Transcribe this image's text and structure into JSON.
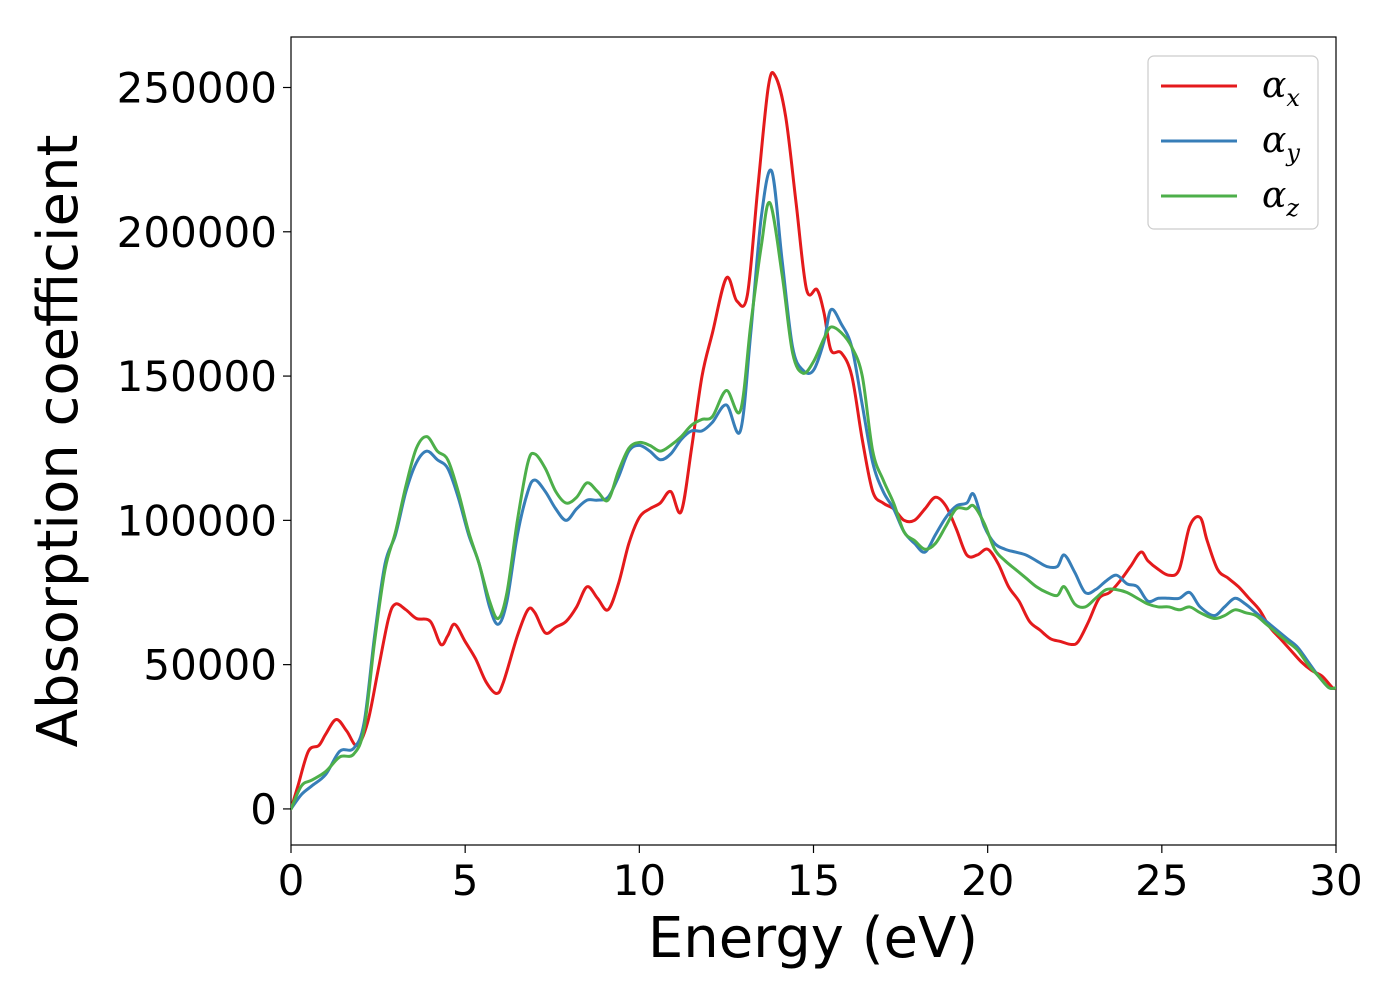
{
  "chart_data": {
    "type": "line",
    "xlabel": "Energy (eV)",
    "ylabel": "Absorption coefficient",
    "xlim": [
      0,
      30
    ],
    "ylim": [
      -12500,
      267500
    ],
    "xticks": [
      0,
      5,
      10,
      15,
      20,
      25,
      30
    ],
    "yticks": [
      0,
      50000,
      100000,
      150000,
      200000,
      250000
    ],
    "grid": false,
    "legend_position": "top-right",
    "series": [
      {
        "name": "α",
        "subscript": "x",
        "color": "#e41a1c",
        "x": [
          0,
          0.2,
          0.5,
          0.8,
          1.0,
          1.3,
          1.6,
          1.9,
          2.2,
          2.5,
          2.8,
          3.0,
          3.3,
          3.6,
          4.0,
          4.3,
          4.5,
          4.7,
          5.0,
          5.3,
          5.6,
          5.9,
          6.1,
          6.5,
          6.8,
          7.0,
          7.3,
          7.6,
          7.9,
          8.2,
          8.5,
          8.8,
          9.1,
          9.4,
          9.7,
          10.0,
          10.3,
          10.6,
          10.9,
          11.2,
          11.5,
          11.8,
          12.1,
          12.5,
          12.8,
          13.1,
          13.4,
          13.7,
          13.9,
          14.2,
          14.5,
          14.8,
          15.1,
          15.3,
          15.5,
          15.8,
          16.1,
          16.4,
          16.7,
          17.0,
          17.3,
          17.6,
          17.9,
          18.2,
          18.5,
          18.8,
          19.1,
          19.4,
          19.7,
          20.0,
          20.3,
          20.6,
          20.9,
          21.2,
          21.5,
          21.8,
          22.1,
          22.4,
          22.6,
          22.9,
          23.2,
          23.5,
          23.8,
          24.1,
          24.4,
          24.6,
          24.9,
          25.2,
          25.5,
          25.8,
          26.1,
          26.3,
          26.6,
          26.9,
          27.2,
          27.5,
          27.8,
          28.1,
          28.4,
          28.7,
          29.0,
          29.3,
          29.6,
          29.9,
          30.0
        ],
        "y": [
          0,
          8000,
          20000,
          22000,
          26000,
          31000,
          27000,
          22000,
          30000,
          48000,
          66000,
          71000,
          69000,
          66000,
          65000,
          57000,
          60000,
          64000,
          58000,
          52000,
          44000,
          40000,
          44000,
          60000,
          69000,
          68000,
          61000,
          63000,
          65000,
          70000,
          77000,
          73000,
          69000,
          78000,
          92000,
          101000,
          104000,
          106000,
          110000,
          103000,
          125000,
          150000,
          165000,
          184000,
          176000,
          178000,
          215000,
          250000,
          254000,
          240000,
          210000,
          180000,
          180000,
          172000,
          159000,
          158000,
          150000,
          128000,
          110000,
          106000,
          104000,
          100000,
          100000,
          104000,
          108000,
          105000,
          97000,
          88000,
          88000,
          90000,
          85000,
          77000,
          72000,
          65000,
          62000,
          59000,
          58000,
          57000,
          58000,
          65000,
          73000,
          75000,
          79000,
          84000,
          89000,
          86000,
          83000,
          81000,
          83000,
          98000,
          101000,
          93000,
          83000,
          80000,
          77000,
          73000,
          69000,
          63000,
          59000,
          55000,
          51000,
          48000,
          46000,
          42000,
          42000
        ]
      },
      {
        "name": "α",
        "subscript": "y",
        "color": "#377eb8",
        "x": [
          0,
          0.3,
          0.6,
          1.0,
          1.4,
          1.8,
          2.1,
          2.4,
          2.7,
          3.0,
          3.3,
          3.6,
          3.9,
          4.2,
          4.5,
          4.8,
          5.1,
          5.4,
          5.7,
          5.95,
          6.2,
          6.5,
          6.8,
          7.0,
          7.3,
          7.6,
          7.9,
          8.2,
          8.5,
          8.8,
          9.1,
          9.4,
          9.7,
          10.0,
          10.3,
          10.6,
          10.9,
          11.2,
          11.5,
          11.8,
          12.1,
          12.5,
          12.9,
          13.2,
          13.5,
          13.8,
          14.1,
          14.4,
          14.7,
          15.0,
          15.3,
          15.5,
          15.8,
          16.1,
          16.4,
          16.7,
          17.0,
          17.3,
          17.6,
          17.9,
          18.2,
          18.5,
          18.8,
          19.1,
          19.4,
          19.6,
          19.9,
          20.2,
          20.5,
          20.8,
          21.1,
          21.4,
          21.7,
          22.0,
          22.2,
          22.5,
          22.8,
          23.1,
          23.4,
          23.7,
          24.0,
          24.3,
          24.6,
          24.9,
          25.2,
          25.5,
          25.8,
          26.1,
          26.5,
          26.8,
          27.1,
          27.4,
          27.7,
          28.0,
          28.3,
          28.6,
          28.9,
          29.2,
          29.5,
          29.8,
          30.0
        ],
        "y": [
          0,
          5000,
          8000,
          12000,
          20000,
          21000,
          30000,
          60000,
          85000,
          95000,
          110000,
          120000,
          124000,
          121000,
          118000,
          108000,
          95000,
          85000,
          70000,
          64000,
          72000,
          95000,
          110000,
          114000,
          110000,
          104000,
          100000,
          104000,
          107000,
          107000,
          108000,
          115000,
          124000,
          126000,
          124000,
          121000,
          123000,
          128000,
          131000,
          131000,
          134000,
          140000,
          131000,
          165000,
          205000,
          221000,
          190000,
          160000,
          152000,
          152000,
          162000,
          173000,
          168000,
          160000,
          140000,
          120000,
          110000,
          104000,
          96000,
          92000,
          89000,
          95000,
          101000,
          105000,
          106000,
          109000,
          98000,
          92000,
          90000,
          89000,
          88000,
          86000,
          84000,
          84000,
          88000,
          82000,
          75000,
          76000,
          79000,
          81000,
          78000,
          77000,
          72000,
          73000,
          73000,
          73000,
          75000,
          70000,
          67000,
          70000,
          73000,
          71000,
          68000,
          65000,
          62000,
          59000,
          56000,
          51000,
          46000,
          42000,
          42000
        ]
      },
      {
        "name": "α",
        "subscript": "z",
        "color": "#4daf4a",
        "x": [
          0,
          0.3,
          0.6,
          1.0,
          1.4,
          1.8,
          2.1,
          2.4,
          2.7,
          3.0,
          3.3,
          3.6,
          3.9,
          4.2,
          4.5,
          4.8,
          5.1,
          5.4,
          5.7,
          5.95,
          6.2,
          6.5,
          6.8,
          7.0,
          7.3,
          7.6,
          7.9,
          8.2,
          8.5,
          8.8,
          9.1,
          9.4,
          9.7,
          10.0,
          10.3,
          10.6,
          10.9,
          11.2,
          11.5,
          11.8,
          12.1,
          12.5,
          12.9,
          13.2,
          13.5,
          13.75,
          14.1,
          14.4,
          14.7,
          15.0,
          15.3,
          15.5,
          15.8,
          16.1,
          16.4,
          16.7,
          17.0,
          17.3,
          17.6,
          17.9,
          18.2,
          18.5,
          18.8,
          19.1,
          19.4,
          19.6,
          19.9,
          20.2,
          20.5,
          20.8,
          21.1,
          21.4,
          21.7,
          22.0,
          22.2,
          22.5,
          22.8,
          23.1,
          23.4,
          23.7,
          24.0,
          24.3,
          24.6,
          24.9,
          25.2,
          25.5,
          25.8,
          26.1,
          26.5,
          26.8,
          27.1,
          27.4,
          27.7,
          28.0,
          28.3,
          28.6,
          28.9,
          29.2,
          29.5,
          29.8,
          30.0
        ],
        "y": [
          0,
          8000,
          10000,
          13000,
          18000,
          19000,
          28000,
          58000,
          83000,
          96000,
          112000,
          125000,
          129000,
          124000,
          121000,
          110000,
          96000,
          85000,
          72000,
          66000,
          75000,
          100000,
          120000,
          123000,
          118000,
          110000,
          106000,
          108000,
          113000,
          110000,
          107000,
          117000,
          125000,
          127000,
          126000,
          124000,
          126000,
          129000,
          133000,
          135000,
          136000,
          145000,
          138000,
          168000,
          195000,
          210000,
          185000,
          158000,
          151000,
          155000,
          163000,
          167000,
          165000,
          160000,
          150000,
          124000,
          114000,
          106000,
          96000,
          93000,
          90000,
          92000,
          98000,
          104000,
          104000,
          105000,
          99000,
          90000,
          86000,
          83000,
          80000,
          77000,
          75000,
          74000,
          77000,
          71000,
          70000,
          73000,
          76000,
          76000,
          75000,
          73000,
          71000,
          70000,
          70000,
          69000,
          70000,
          68000,
          66000,
          67000,
          69000,
          68000,
          67000,
          64000,
          61000,
          58000,
          55000,
          50000,
          46000,
          42000,
          42000
        ]
      }
    ]
  }
}
